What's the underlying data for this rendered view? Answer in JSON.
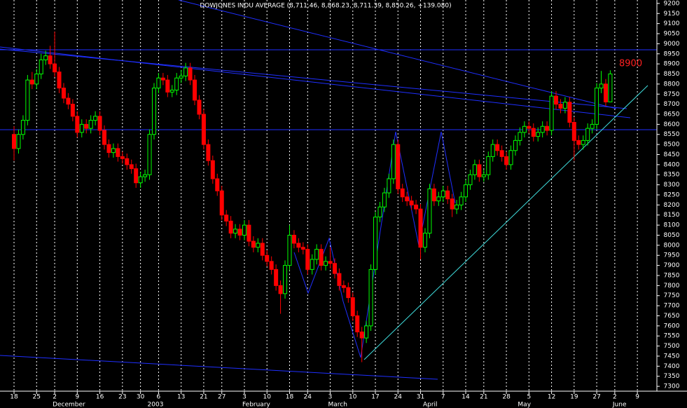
{
  "chart_data": {
    "type": "candlestick",
    "title": "DOWJONES INDU AVERAGE (8,711.46, 8,868.23, 8,711.39, 8,850.26, +139.080)",
    "annotation": "8900",
    "up_color": "#00ff00",
    "down_color": "#ff0000",
    "ylim": [
      7276,
      9217
    ],
    "yticks": [
      7300,
      7350,
      7400,
      7450,
      7500,
      7550,
      7600,
      7650,
      7700,
      7750,
      7800,
      7850,
      7900,
      7950,
      8000,
      8050,
      8100,
      8150,
      8200,
      8250,
      8300,
      8350,
      8400,
      8450,
      8500,
      8550,
      8600,
      8650,
      8700,
      8750,
      8800,
      8850,
      8900,
      8950,
      9000,
      9050,
      9100,
      9150,
      9200
    ],
    "categories": [
      "18",
      null,
      null,
      null,
      null,
      "25",
      null,
      null,
      null,
      "2",
      null,
      null,
      null,
      null,
      "9",
      null,
      null,
      null,
      null,
      "16",
      null,
      null,
      null,
      null,
      "23",
      null,
      null,
      null,
      "30",
      null,
      null,
      null,
      "6",
      null,
      null,
      null,
      null,
      "13",
      null,
      null,
      null,
      null,
      "21",
      null,
      null,
      null,
      "27",
      null,
      null,
      null,
      null,
      "3",
      null,
      null,
      null,
      null,
      "10",
      null,
      null,
      null,
      null,
      "18",
      null,
      null,
      null,
      "24",
      null,
      null,
      null,
      null,
      "3",
      null,
      null,
      null,
      null,
      "10",
      null,
      null,
      null,
      null,
      "17",
      null,
      null,
      null,
      null,
      "24",
      null,
      null,
      null,
      null,
      "31",
      null,
      null,
      null,
      null,
      "7",
      null,
      null,
      null,
      null,
      "14",
      null,
      null,
      null,
      "21",
      null,
      null,
      null,
      null,
      "28",
      null,
      null,
      null,
      null,
      "5",
      null,
      null,
      null,
      null,
      "12",
      null,
      null,
      null,
      null,
      "19",
      null,
      null,
      null,
      null,
      "27",
      null,
      null,
      null,
      "2",
      null,
      null,
      null,
      null,
      "9",
      null,
      null,
      null,
      null
    ],
    "months": [
      null,
      null,
      null,
      null,
      null,
      null,
      null,
      null,
      null,
      "December",
      null,
      null,
      null,
      null,
      null,
      null,
      null,
      null,
      null,
      null,
      null,
      null,
      null,
      null,
      null,
      null,
      null,
      null,
      null,
      null,
      "2003",
      null,
      null,
      null,
      null,
      null,
      null,
      null,
      null,
      null,
      null,
      null,
      null,
      null,
      null,
      null,
      null,
      null,
      null,
      null,
      null,
      "February",
      null,
      null,
      null,
      null,
      null,
      null,
      null,
      null,
      null,
      null,
      null,
      null,
      null,
      null,
      null,
      null,
      null,
      null,
      "March",
      null,
      null,
      null,
      null,
      null,
      null,
      null,
      null,
      null,
      null,
      null,
      null,
      null,
      null,
      null,
      null,
      null,
      null,
      null,
      null,
      "April",
      null,
      null,
      null,
      null,
      null,
      null,
      null,
      null,
      null,
      null,
      null,
      null,
      null,
      null,
      null,
      null,
      null,
      null,
      null,
      null,
      "May",
      null,
      null,
      null,
      null,
      null,
      null,
      null,
      null,
      null,
      null,
      null,
      null,
      null,
      null,
      null,
      null,
      null,
      null,
      null,
      null,
      "June",
      null,
      null,
      null,
      null,
      null,
      null,
      null,
      null,
      null
    ],
    "open": [
      8550,
      8480,
      8550,
      8620,
      8820,
      8800,
      8850,
      8920,
      8940,
      8900,
      8860,
      8780,
      8730,
      8700,
      8640,
      8560,
      8600,
      8580,
      8620,
      8640,
      8570,
      8500,
      8460,
      8480,
      8440,
      8430,
      8400,
      8380,
      8310,
      8340,
      8350,
      8550,
      8780,
      8830,
      8820,
      8760,
      8770,
      8830,
      8840,
      8880,
      8820,
      8720,
      8650,
      8500,
      8420,
      8330,
      8270,
      8150,
      8120,
      8060,
      8080,
      8050,
      8100,
      8020,
      7990,
      8010,
      7950,
      7920,
      7880,
      7800,
      7760,
      7900,
      8050,
      8010,
      7990,
      7980,
      7880,
      7930,
      7980,
      7900,
      7920,
      7910,
      7860,
      7800,
      7790,
      7740,
      7650,
      7570,
      7540,
      7600,
      7880,
      8140,
      8190,
      8260,
      8330,
      8500,
      8280,
      8240,
      8220,
      8200,
      8180,
      7990,
      8060,
      8280,
      8220,
      8240,
      8270,
      8230,
      8180,
      8200,
      8240,
      8300,
      8350,
      8400,
      8340,
      8350,
      8440,
      8500,
      8470,
      8440,
      8400,
      8470,
      8520,
      8560,
      8590,
      8580,
      8540,
      8560,
      8590,
      8570,
      8740,
      8700,
      8680,
      8710,
      8610,
      8520,
      8500,
      8520,
      8580,
      8600,
      8780,
      8800,
      8711.46,
      null,
      null,
      null,
      null,
      null,
      null,
      null,
      null,
      null,
      null
    ],
    "high": [
      8590,
      8575,
      8645,
      8845,
      8860,
      8875,
      8950,
      8965,
      8990,
      9060,
      8885,
      8805,
      8755,
      8725,
      8665,
      8625,
      8625,
      8645,
      8665,
      8665,
      8595,
      8525,
      8505,
      8505,
      8465,
      8455,
      8425,
      8405,
      8365,
      8375,
      8575,
      8805,
      8855,
      8855,
      8845,
      8795,
      8855,
      8870,
      8905,
      8905,
      8845,
      8745,
      8675,
      8525,
      8445,
      8355,
      8295,
      8175,
      8145,
      8105,
      8105,
      8125,
      8125,
      8045,
      8035,
      8035,
      7975,
      7945,
      7905,
      7825,
      7925,
      8100,
      8075,
      8035,
      8015,
      8005,
      7955,
      8005,
      8005,
      7945,
      7990,
      7935,
      7885,
      7825,
      7815,
      7765,
      7675,
      7595,
      7625,
      7905,
      8165,
      8215,
      8285,
      8355,
      8525,
      8525,
      8305,
      8265,
      8245,
      8225,
      8205,
      8085,
      8305,
      8305,
      8265,
      8295,
      8295,
      8255,
      8225,
      8265,
      8325,
      8375,
      8425,
      8425,
      8375,
      8465,
      8525,
      8525,
      8495,
      8465,
      8495,
      8545,
      8585,
      8615,
      8615,
      8605,
      8585,
      8615,
      8615,
      8765,
      8765,
      8725,
      8735,
      8735,
      8635,
      8545,
      8545,
      8605,
      8625,
      8805,
      8865,
      8825,
      8868.23,
      null,
      null,
      null,
      null,
      null,
      null,
      null,
      null,
      null,
      null
    ],
    "low": [
      8420,
      8455,
      8525,
      8595,
      8775,
      8775,
      8825,
      8895,
      8875,
      8835,
      8755,
      8705,
      8675,
      8615,
      8535,
      8535,
      8555,
      8555,
      8595,
      8545,
      8475,
      8435,
      8435,
      8415,
      8405,
      8375,
      8355,
      8285,
      8285,
      8315,
      8325,
      8525,
      8755,
      8795,
      8735,
      8735,
      8745,
      8805,
      8815,
      8795,
      8695,
      8625,
      8475,
      8395,
      8305,
      8245,
      8125,
      8095,
      8035,
      8035,
      8025,
      8025,
      7995,
      7965,
      7965,
      7925,
      7895,
      7855,
      7775,
      7660,
      7735,
      7875,
      7985,
      7965,
      7955,
      7855,
      7855,
      7905,
      7875,
      7875,
      7885,
      7835,
      7775,
      7765,
      7715,
      7625,
      7545,
      7420,
      7515,
      7575,
      7855,
      8115,
      8165,
      8235,
      8305,
      8255,
      8215,
      8195,
      8175,
      8155,
      7930,
      7965,
      8035,
      8195,
      8195,
      8215,
      8205,
      8140,
      8155,
      8175,
      8215,
      8275,
      8325,
      8315,
      8315,
      8325,
      8415,
      8445,
      8415,
      8375,
      8375,
      8445,
      8495,
      8535,
      8555,
      8515,
      8515,
      8535,
      8545,
      8545,
      8675,
      8655,
      8655,
      8585,
      8420,
      8475,
      8475,
      8495,
      8555,
      8575,
      8755,
      8690,
      8711.39,
      null,
      null,
      null,
      null,
      null,
      null,
      null,
      null,
      null,
      null
    ],
    "close": [
      8480,
      8550,
      8620,
      8820,
      8800,
      8850,
      8920,
      8940,
      8900,
      8860,
      8780,
      8730,
      8700,
      8640,
      8560,
      8600,
      8580,
      8620,
      8640,
      8570,
      8500,
      8460,
      8480,
      8440,
      8430,
      8400,
      8380,
      8310,
      8340,
      8350,
      8550,
      8780,
      8830,
      8820,
      8760,
      8770,
      8830,
      8840,
      8880,
      8820,
      8720,
      8650,
      8500,
      8420,
      8330,
      8270,
      8150,
      8120,
      8060,
      8080,
      8050,
      8100,
      8020,
      7990,
      8010,
      7950,
      7920,
      7880,
      7800,
      7760,
      7900,
      8050,
      8010,
      7990,
      7980,
      7880,
      7930,
      7980,
      7900,
      7920,
      7910,
      7860,
      7800,
      7790,
      7740,
      7650,
      7570,
      7540,
      7600,
      7880,
      8140,
      8190,
      8260,
      8330,
      8500,
      8280,
      8240,
      8220,
      8200,
      8180,
      7990,
      8060,
      8280,
      8220,
      8240,
      8270,
      8230,
      8180,
      8200,
      8240,
      8300,
      8350,
      8400,
      8340,
      8350,
      8440,
      8500,
      8470,
      8440,
      8400,
      8470,
      8520,
      8560,
      8590,
      8580,
      8540,
      8560,
      8590,
      8570,
      8740,
      8700,
      8680,
      8710,
      8610,
      8520,
      8500,
      8520,
      8580,
      8600,
      8780,
      8800,
      8711.18,
      8850.26,
      null,
      null,
      null,
      null,
      null,
      null,
      null,
      null,
      null,
      null
    ]
  }
}
